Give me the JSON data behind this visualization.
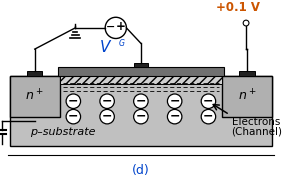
{
  "bg_color": "#ffffff",
  "substrate_color": "#c0c0c0",
  "gate_oxide_color": "#d8d8d8",
  "gate_metal_color": "#707070",
  "n_plus_color": "#b0b0b0",
  "metal_contact_color": "#222222",
  "title_label": "(d)",
  "vdd_label": "+0.1 V",
  "p_sub_label": "p–substrate",
  "n1_label": "n+",
  "n2_label": "n+",
  "electrons_label1": "Electrons",
  "electrons_label2": "(Channel)",
  "title_color": "#0044cc",
  "vdd_color": "#cc5500"
}
